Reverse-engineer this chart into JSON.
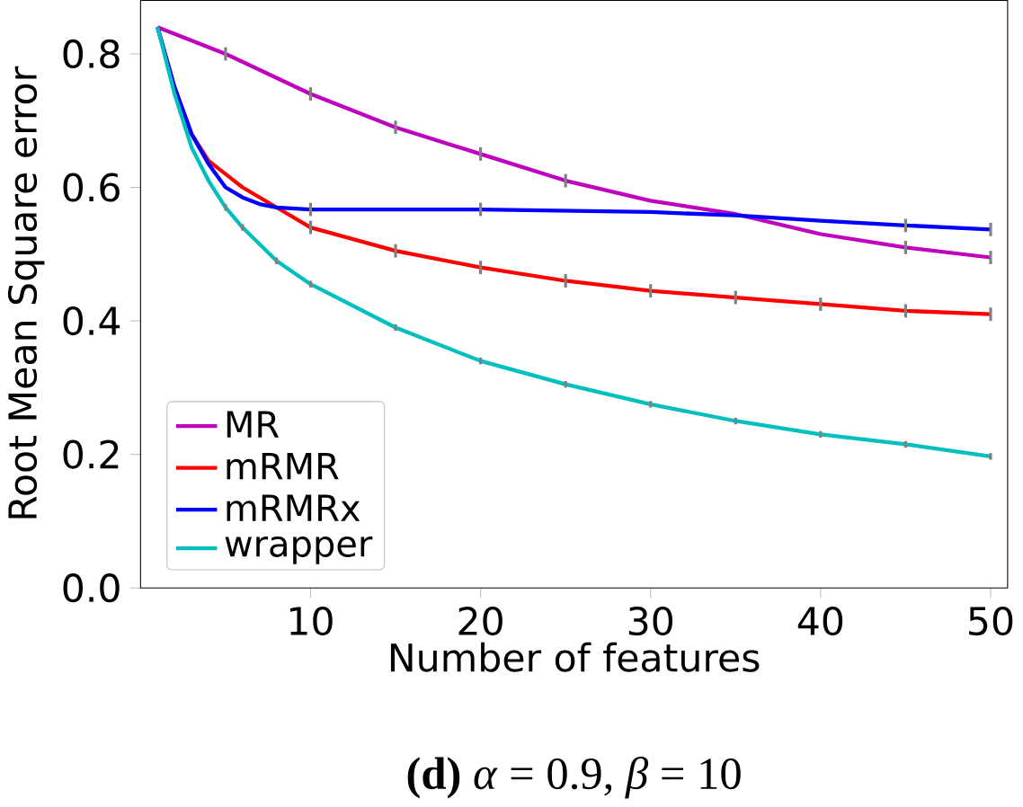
{
  "chart_data": {
    "type": "line",
    "xlabel": "Number of features",
    "ylabel": "Root Mean Square error",
    "annotations": [
      "**(d)** *α* = 0.9, *β* = 10"
    ],
    "xlim": [
      0,
      51
    ],
    "xticks": [
      10,
      20,
      30,
      40,
      50
    ],
    "ylim": [
      0,
      0.88
    ],
    "yticks": [
      {
        "value": 0,
        "label": "0.0"
      },
      0.2,
      0.4,
      0.6,
      0.8
    ],
    "legend": "bottom left",
    "series": [
      {
        "name": "MR",
        "color": "#bf00bf",
        "x": [
          1,
          5,
          10,
          15,
          20,
          25,
          30,
          35,
          40,
          45,
          50
        ],
        "values": [
          0.84,
          0.8,
          0.74,
          0.69,
          0.65,
          0.61,
          0.58,
          0.56,
          0.53,
          0.51,
          0.495
        ],
        "errors": [
          null,
          0.01,
          0.01,
          0.01,
          0.01,
          0.01,
          null,
          null,
          null,
          0.01,
          0.01
        ]
      },
      {
        "name": "mRMR",
        "color": "#ff0000",
        "x": [
          1,
          2,
          3,
          4,
          5,
          6,
          8,
          10,
          15,
          20,
          25,
          30,
          35,
          40,
          45,
          50
        ],
        "values": [
          0.84,
          0.75,
          0.68,
          0.64,
          0.62,
          0.6,
          0.57,
          0.54,
          0.505,
          0.48,
          0.46,
          0.445,
          0.435,
          0.425,
          0.415,
          0.41
        ],
        "errors": [
          null,
          null,
          null,
          null,
          null,
          null,
          null,
          0.01,
          0.01,
          0.01,
          0.01,
          0.01,
          0.01,
          0.01,
          0.01,
          0.01
        ]
      },
      {
        "name": "mRMRx",
        "color": "#0000ff",
        "x": [
          1,
          2,
          3,
          4,
          5,
          6,
          7,
          8,
          10,
          20,
          30,
          35,
          40,
          45,
          50
        ],
        "values": [
          0.84,
          0.75,
          0.68,
          0.635,
          0.6,
          0.585,
          0.575,
          0.57,
          0.567,
          0.567,
          0.563,
          0.558,
          0.55,
          0.543,
          0.537
        ],
        "errors": [
          null,
          null,
          null,
          null,
          null,
          null,
          null,
          null,
          0.01,
          0.01,
          null,
          null,
          null,
          0.01,
          0.01
        ]
      },
      {
        "name": "wrapper",
        "color": "#00bfbf",
        "x": [
          1,
          2,
          3,
          4,
          5,
          6,
          8,
          10,
          15,
          20,
          25,
          30,
          35,
          40,
          45,
          50
        ],
        "values": [
          0.84,
          0.74,
          0.66,
          0.61,
          0.57,
          0.54,
          0.49,
          0.455,
          0.39,
          0.34,
          0.305,
          0.275,
          0.25,
          0.23,
          0.215,
          0.197
        ],
        "errors": [
          null,
          null,
          null,
          null,
          0.005,
          0.005,
          0.005,
          0.005,
          0.005,
          0.005,
          0.005,
          0.005,
          0.005,
          0.005,
          0.005,
          0.005
        ]
      }
    ]
  }
}
